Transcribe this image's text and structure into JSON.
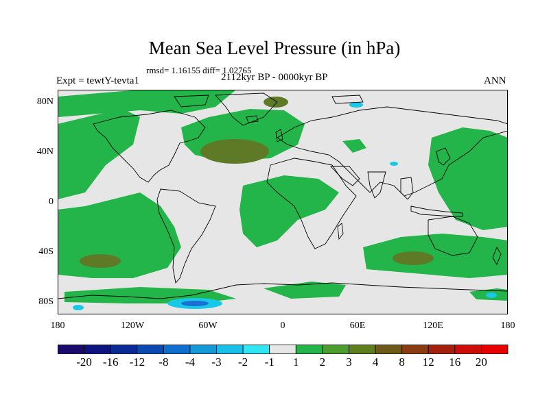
{
  "title": "Mean Sea Level Pressure (in hPa)",
  "stats": "rmsd= 1.16155 diff= 1.02765",
  "experiment": "Expt = tewtY-tevta1",
  "period": "2112kyr BP - 0000kyr BP",
  "season": "ANN",
  "lat_labels": [
    "80N",
    "40N",
    "0",
    "40S",
    "80S"
  ],
  "lon_labels": [
    "180",
    "120W",
    "60W",
    "0",
    "60E",
    "120E",
    "180"
  ],
  "colorbar": {
    "labels": [
      "-20",
      "-16",
      "-12",
      "-8",
      "-4",
      "-3",
      "-2",
      "-1",
      "1",
      "2",
      "3",
      "4",
      "8",
      "12",
      "16",
      "20"
    ],
    "colors": [
      "#1a0a6b",
      "#0d137f",
      "#0a2a96",
      "#0b49b0",
      "#0f6fcf",
      "#1399d6",
      "#18bfe6",
      "#2fe6f2",
      "#e6e6e6",
      "#23b54a",
      "#4b9e2e",
      "#5f7f1f",
      "#6e5a18",
      "#8a3c10",
      "#a3200c",
      "#cc0d08",
      "#e60000"
    ]
  },
  "colors": {
    "neutral": "#e6e6e6",
    "green": "#23b54a",
    "olive": "#5f7a27",
    "cyan": "#18c8e8",
    "blue": "#1a6fd2"
  }
}
